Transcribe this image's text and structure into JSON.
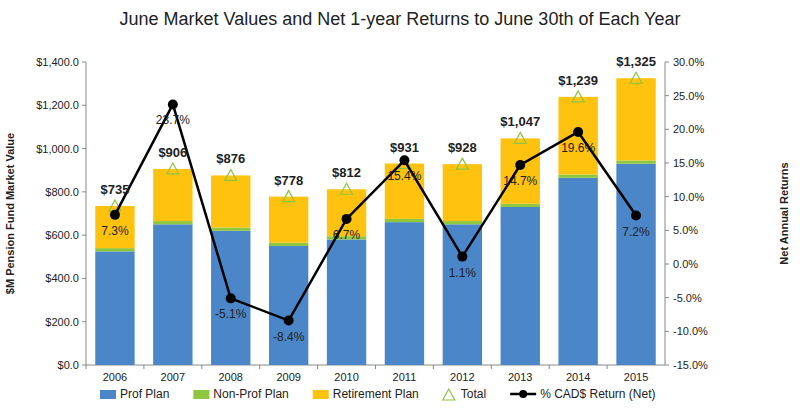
{
  "chart_data": {
    "type": "bar",
    "title": "June Market Values and Net 1-year Returns to June 30th of Each Year",
    "y_label": "$M Pension Fund Market Value",
    "y2_label": "Net Annual Returns",
    "categories": [
      "2006",
      "2007",
      "2008",
      "2009",
      "2010",
      "2011",
      "2012",
      "2013",
      "2014",
      "2015"
    ],
    "stacked": true,
    "grid": false,
    "legend": "bottom",
    "ylim": [
      0,
      1400
    ],
    "yticks": [
      {
        "value": 0,
        "label": "$0.0"
      },
      {
        "value": 200,
        "label": "$200.0"
      },
      {
        "value": 400,
        "label": "$400.0"
      },
      {
        "value": 600,
        "label": "$600.0"
      },
      {
        "value": 800,
        "label": "$800.0"
      },
      {
        "value": 1000,
        "label": "$1,000.0"
      },
      {
        "value": 1200,
        "label": "$1,200.0"
      },
      {
        "value": 1400,
        "label": "$1,400.0"
      }
    ],
    "y2lim": [
      -15,
      30
    ],
    "y2ticks": [
      {
        "value": -15,
        "label": "-15.0%"
      },
      {
        "value": -10,
        "label": "-10.0%"
      },
      {
        "value": -5,
        "label": "-5.0%"
      },
      {
        "value": 0,
        "label": "0.0%"
      },
      {
        "value": 5,
        "label": "5.0%"
      },
      {
        "value": 10,
        "label": "10.0%"
      },
      {
        "value": 15,
        "label": "15.0%"
      },
      {
        "value": 20,
        "label": "20.0%"
      },
      {
        "value": 25,
        "label": "25.0%"
      },
      {
        "value": 30,
        "label": "30.0%"
      }
    ],
    "series": [
      {
        "name": "Prof Plan",
        "type": "bar",
        "color": "#4a86c8",
        "values": [
          525,
          650,
          620,
          550,
          580,
          660,
          650,
          730,
          865,
          930
        ]
      },
      {
        "name": "Non-Prof Plan",
        "type": "bar",
        "color": "#8dc63f",
        "values": [
          15,
          15,
          15,
          15,
          15,
          15,
          15,
          15,
          15,
          15
        ]
      },
      {
        "name": "Retirement Plan",
        "type": "bar",
        "color": "#ffc20e",
        "values": [
          195,
          241,
          241,
          213,
          217,
          256,
          263,
          302,
          359,
          380
        ]
      },
      {
        "name": "Total",
        "type": "scatter",
        "marker": "triangle",
        "color": "#8dc63f",
        "data_labels": true,
        "values": [
          735,
          906,
          876,
          778,
          812,
          931,
          928,
          1047,
          1239,
          1325
        ],
        "value_labels": [
          "$735",
          "$906",
          "$876",
          "$778",
          "$812",
          "$931",
          "$928",
          "$1,047",
          "$1,239",
          "$1,325"
        ]
      },
      {
        "name": "% CAD$ Return (Net)",
        "type": "line",
        "axis": "y2",
        "marker": "circle",
        "color": "#000000",
        "data_labels": true,
        "values": [
          7.3,
          23.7,
          -5.1,
          -8.4,
          6.7,
          15.4,
          1.1,
          14.7,
          19.6,
          7.2
        ],
        "value_labels": [
          "7.3%",
          "23.7%",
          "-5.1%",
          "-8.4%",
          "6.7%",
          "15.4%",
          "1.1%",
          "14.7%",
          "19.6%",
          "7.2%"
        ]
      }
    ]
  }
}
